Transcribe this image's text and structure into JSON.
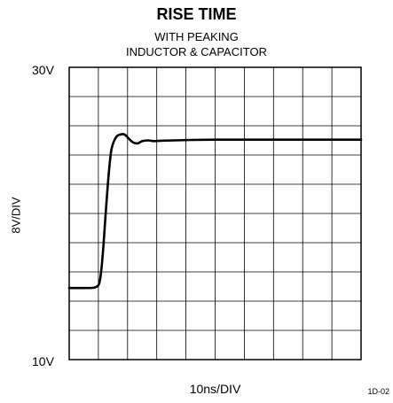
{
  "header": {
    "title": "RISE TIME",
    "subtitle_line1": "WITH PEAKING",
    "subtitle_line2": "INDUCTOR & CAPACITOR"
  },
  "footer": {
    "figure_code": "1D-02"
  },
  "chart_data": {
    "type": "line",
    "title": "RISE TIME",
    "subtitle": "WITH PEAKING INDUCTOR & CAPACITOR",
    "xlabel": "10ns/DIV",
    "ylabel": "8V/DIV",
    "ytick_top": "30V",
    "ytick_bottom": "10V",
    "grid": true,
    "x_divisions": 10,
    "y_divisions": 10,
    "xlim": [
      0,
      10
    ],
    "ylim": [
      10,
      30
    ],
    "series": [
      {
        "x": [
          0,
          0.5,
          0.9,
          1.05,
          1.15,
          1.25,
          1.35,
          1.45,
          1.6,
          1.75,
          1.9,
          2.05,
          2.2,
          2.35,
          2.5,
          2.7,
          2.9,
          3.2,
          3.6,
          4.2,
          5,
          6,
          7,
          8,
          9,
          10
        ],
        "y": [
          14.9,
          14.9,
          14.95,
          15.4,
          17.2,
          20.0,
          22.6,
          24.4,
          25.2,
          25.4,
          25.4,
          25.1,
          24.85,
          24.8,
          24.95,
          25.0,
          24.95,
          24.98,
          25.0,
          25.03,
          25.05,
          25.05,
          25.05,
          25.05,
          25.05,
          25.05
        ]
      }
    ]
  }
}
